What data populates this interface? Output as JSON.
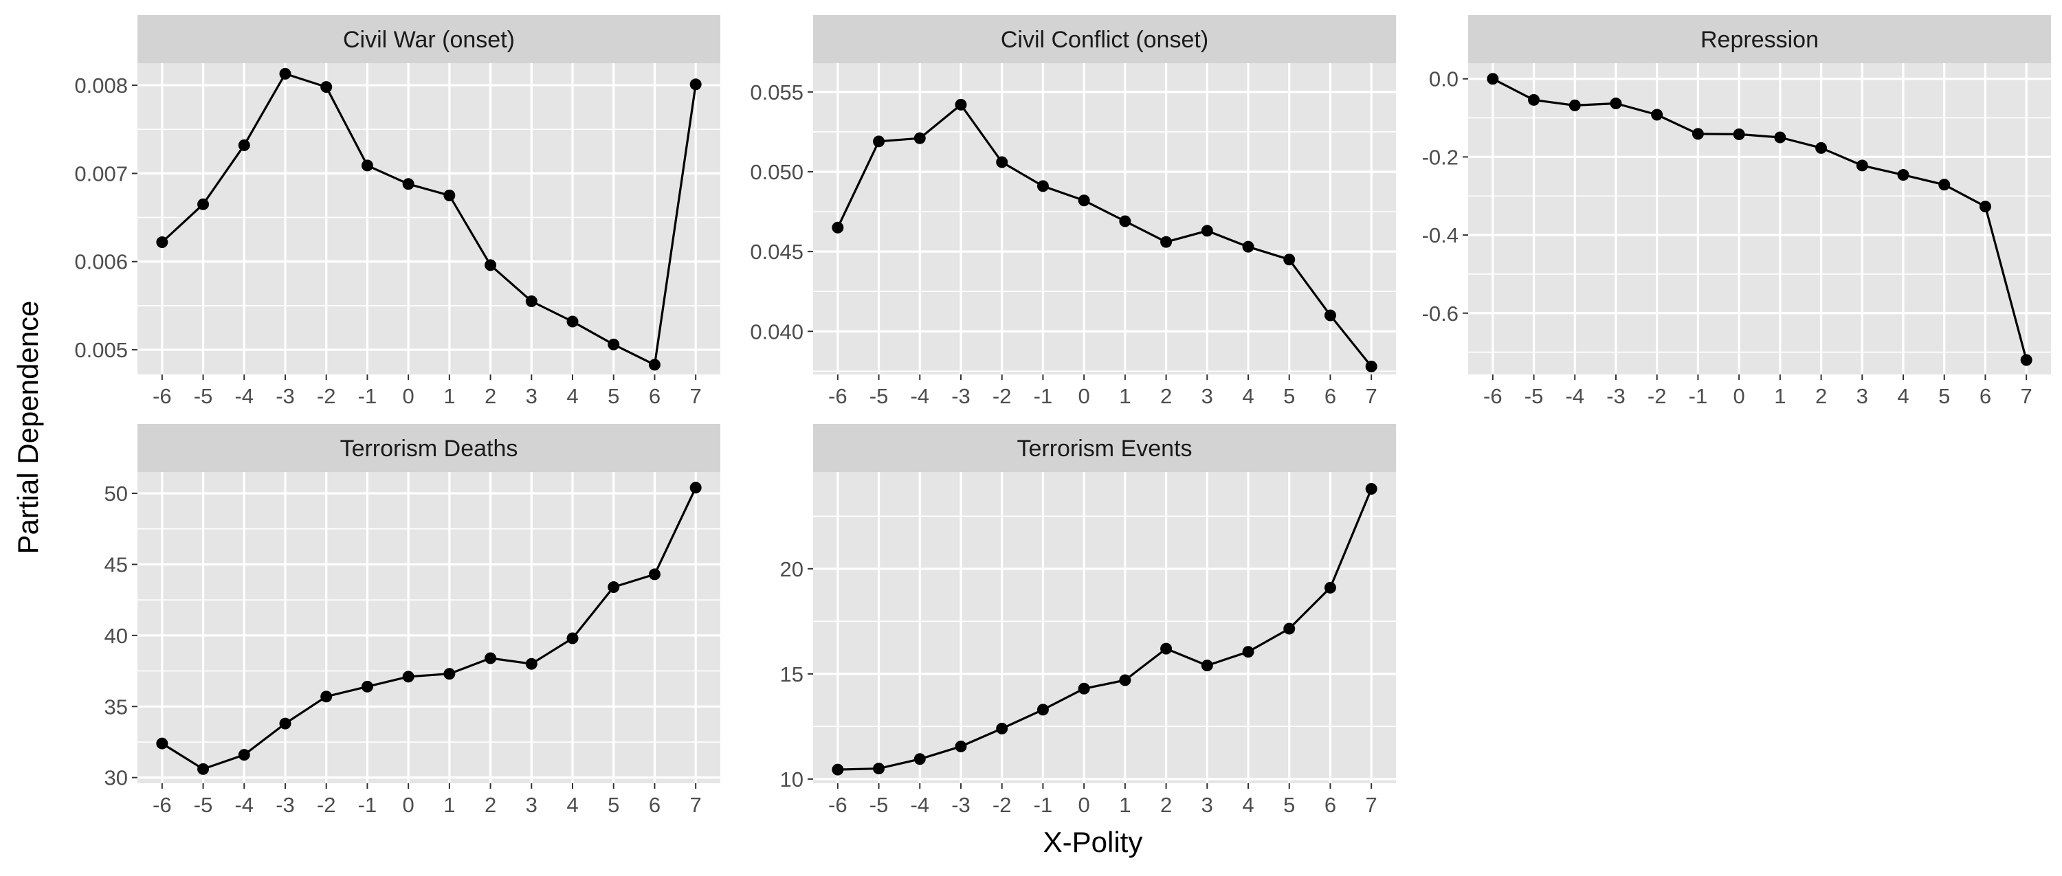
{
  "figure": {
    "ylabel": "Partial Dependence",
    "xlabel": "X-Polity"
  },
  "colors": {
    "panel_background": "#e5e5e5",
    "strip_background": "#d3d3d3",
    "grid": "#ffffff",
    "line": "#000000",
    "tick_text": "#4d4d4d"
  },
  "chart_data": [
    {
      "type": "line",
      "title": "Civil War (onset)",
      "x": [
        -6,
        -5,
        -4,
        -3,
        -2,
        -1,
        0,
        1,
        2,
        3,
        4,
        5,
        6,
        7
      ],
      "y": [
        0.00622,
        0.00665,
        0.00732,
        0.00813,
        0.00798,
        0.00709,
        0.00688,
        0.00675,
        0.00596,
        0.00555,
        0.00532,
        0.00506,
        0.00483,
        0.00801
      ],
      "yticks": [
        "0.005",
        "0.006",
        "0.007",
        "0.008"
      ],
      "ytick_values": [
        0.005,
        0.006,
        0.007,
        0.008
      ],
      "ylim": [
        0.00472,
        0.00825
      ],
      "xlim": [
        -6.6,
        7.6
      ],
      "grid": true
    },
    {
      "type": "line",
      "title": "Civil Conflict (onset)",
      "x": [
        -6,
        -5,
        -4,
        -3,
        -2,
        -1,
        0,
        1,
        2,
        3,
        4,
        5,
        6,
        7
      ],
      "y": [
        0.0465,
        0.0519,
        0.0521,
        0.0542,
        0.0506,
        0.0491,
        0.0482,
        0.0469,
        0.0456,
        0.0463,
        0.0453,
        0.0445,
        0.041,
        0.0378
      ],
      "yticks": [
        "0.040",
        "0.045",
        "0.050",
        "0.055"
      ],
      "ytick_values": [
        0.04,
        0.045,
        0.05,
        0.055
      ],
      "ylim": [
        0.0373,
        0.0568
      ],
      "xlim": [
        -6.6,
        7.6
      ],
      "grid": true
    },
    {
      "type": "line",
      "title": "Repression",
      "x": [
        -6,
        -5,
        -4,
        -3,
        -2,
        -1,
        0,
        1,
        2,
        3,
        4,
        5,
        6,
        7
      ],
      "y": [
        0.0,
        -0.054,
        -0.068,
        -0.063,
        -0.092,
        -0.141,
        -0.142,
        -0.15,
        -0.177,
        -0.222,
        -0.246,
        -0.271,
        -0.327,
        -0.72
      ],
      "yticks": [
        "-0.6",
        "-0.4",
        "-0.2",
        "0.0"
      ],
      "ytick_values": [
        -0.6,
        -0.4,
        -0.2,
        0.0
      ],
      "ylim": [
        -0.757,
        0.04
      ],
      "xlim": [
        -6.6,
        7.6
      ],
      "grid": true
    },
    {
      "type": "line",
      "title": "Terrorism Deaths",
      "x": [
        -6,
        -5,
        -4,
        -3,
        -2,
        -1,
        0,
        1,
        2,
        3,
        4,
        5,
        6,
        7
      ],
      "y": [
        32.4,
        30.6,
        31.6,
        33.8,
        35.7,
        36.4,
        37.1,
        37.3,
        38.4,
        38.0,
        39.8,
        43.4,
        44.3,
        50.4
      ],
      "yticks": [
        "30",
        "35",
        "40",
        "45",
        "50"
      ],
      "ytick_values": [
        30,
        35,
        40,
        45,
        50
      ],
      "ylim": [
        29.6,
        51.5
      ],
      "xlim": [
        -6.6,
        7.6
      ],
      "grid": true
    },
    {
      "type": "line",
      "title": "Terrorism Events",
      "x": [
        -6,
        -5,
        -4,
        -3,
        -2,
        -1,
        0,
        1,
        2,
        3,
        4,
        5,
        6,
        7
      ],
      "y": [
        10.45,
        10.5,
        10.95,
        11.55,
        12.4,
        13.3,
        14.3,
        14.7,
        16.2,
        15.4,
        16.05,
        17.15,
        19.1,
        23.8
      ],
      "yticks": [
        "10",
        "15",
        "20"
      ],
      "ytick_values": [
        10,
        15,
        20
      ],
      "ylim": [
        9.8,
        24.6
      ],
      "xlim": [
        -6.6,
        7.6
      ],
      "grid": true
    }
  ]
}
